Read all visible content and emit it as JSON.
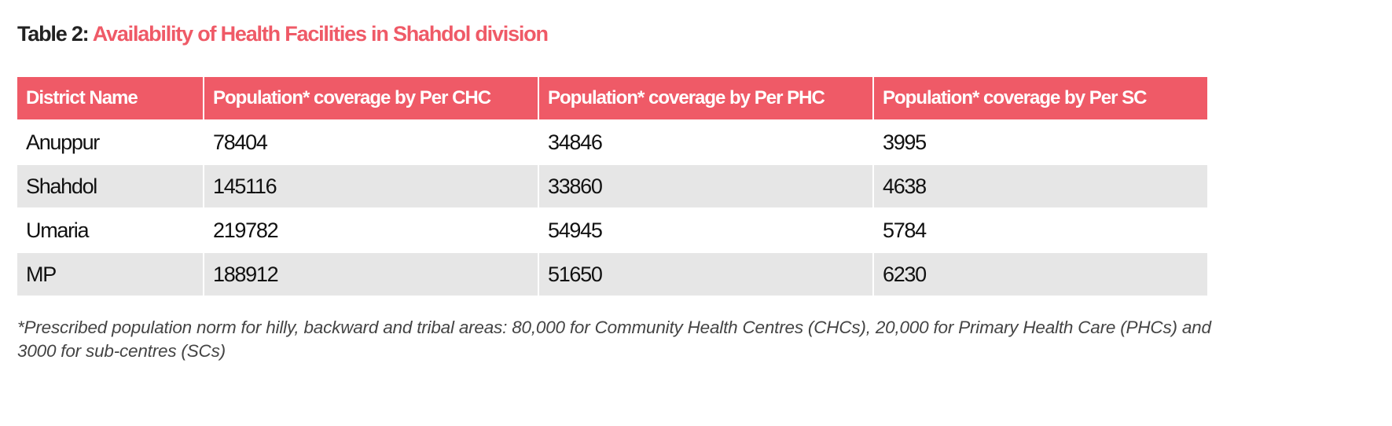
{
  "header": {
    "label": "Table 2:",
    "title": "Availability of Health Facilities in Shahdol division"
  },
  "table": {
    "columns": [
      "District Name",
      "Population* coverage by Per CHC",
      "Population* coverage by Per PHC",
      "Population* coverage by Per SC"
    ],
    "rows": [
      [
        "Anuppur",
        78404,
        34846,
        3995
      ],
      [
        "Shahdol",
        145116,
        33860,
        4638
      ],
      [
        "Umaria",
        219782,
        54945,
        5784
      ],
      [
        "MP",
        188912,
        51650,
        6230
      ]
    ]
  },
  "footnote": "*Prescribed population norm for hilly, backward and tribal areas: 80,000 for Community Health Centres (CHCs), 20,000 for Primary Health Care (PHCs) and 3000 for sub-centres (SCs)"
}
